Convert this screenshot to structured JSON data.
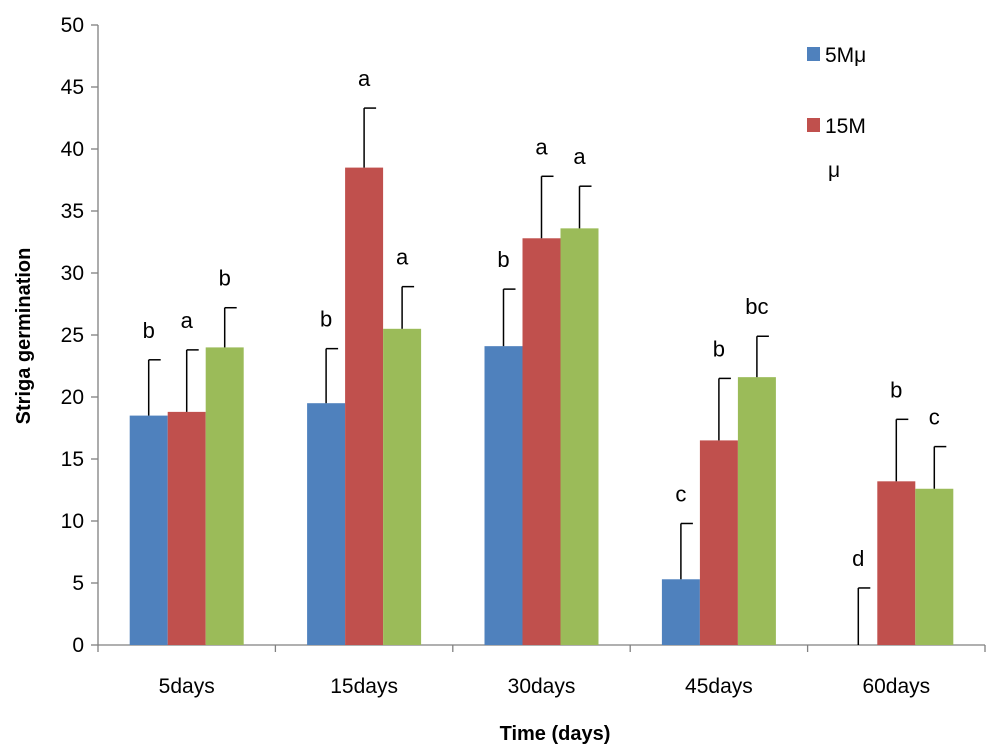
{
  "chart_data": {
    "type": "bar",
    "title": "",
    "xlabel": "Time (days)",
    "ylabel": "Striga germination",
    "ylim": [
      0,
      50
    ],
    "yticks": [
      0,
      5,
      10,
      15,
      20,
      25,
      30,
      35,
      40,
      45,
      50
    ],
    "categories": [
      "5days",
      "15days",
      "30days",
      "45days",
      "60days"
    ],
    "series": [
      {
        "name": "5Mμ",
        "color": "#4F81BD",
        "values": [
          18.5,
          19.5,
          24.1,
          5.3,
          0
        ],
        "errors": [
          4.5,
          4.4,
          4.6,
          4.5,
          4.6
        ],
        "labels": [
          "b",
          "b",
          "b",
          "c",
          "d"
        ]
      },
      {
        "name": "15M μ",
        "name_lines": [
          "15M",
          "μ"
        ],
        "color": "#C0504D",
        "values": [
          18.8,
          38.5,
          32.8,
          16.5,
          13.2
        ],
        "errors": [
          5.0,
          4.8,
          5.0,
          5.0,
          5.0
        ],
        "labels": [
          "a",
          "a",
          "a",
          "b",
          "b"
        ]
      },
      {
        "name": "",
        "color": "#9BBB59",
        "values": [
          24.0,
          25.5,
          33.6,
          21.6,
          12.6
        ],
        "errors": [
          3.2,
          3.4,
          3.4,
          3.3,
          3.4
        ],
        "labels": [
          "b",
          "a",
          "a",
          "bc",
          "c"
        ]
      }
    ],
    "grid": false,
    "legend": "top-right"
  }
}
